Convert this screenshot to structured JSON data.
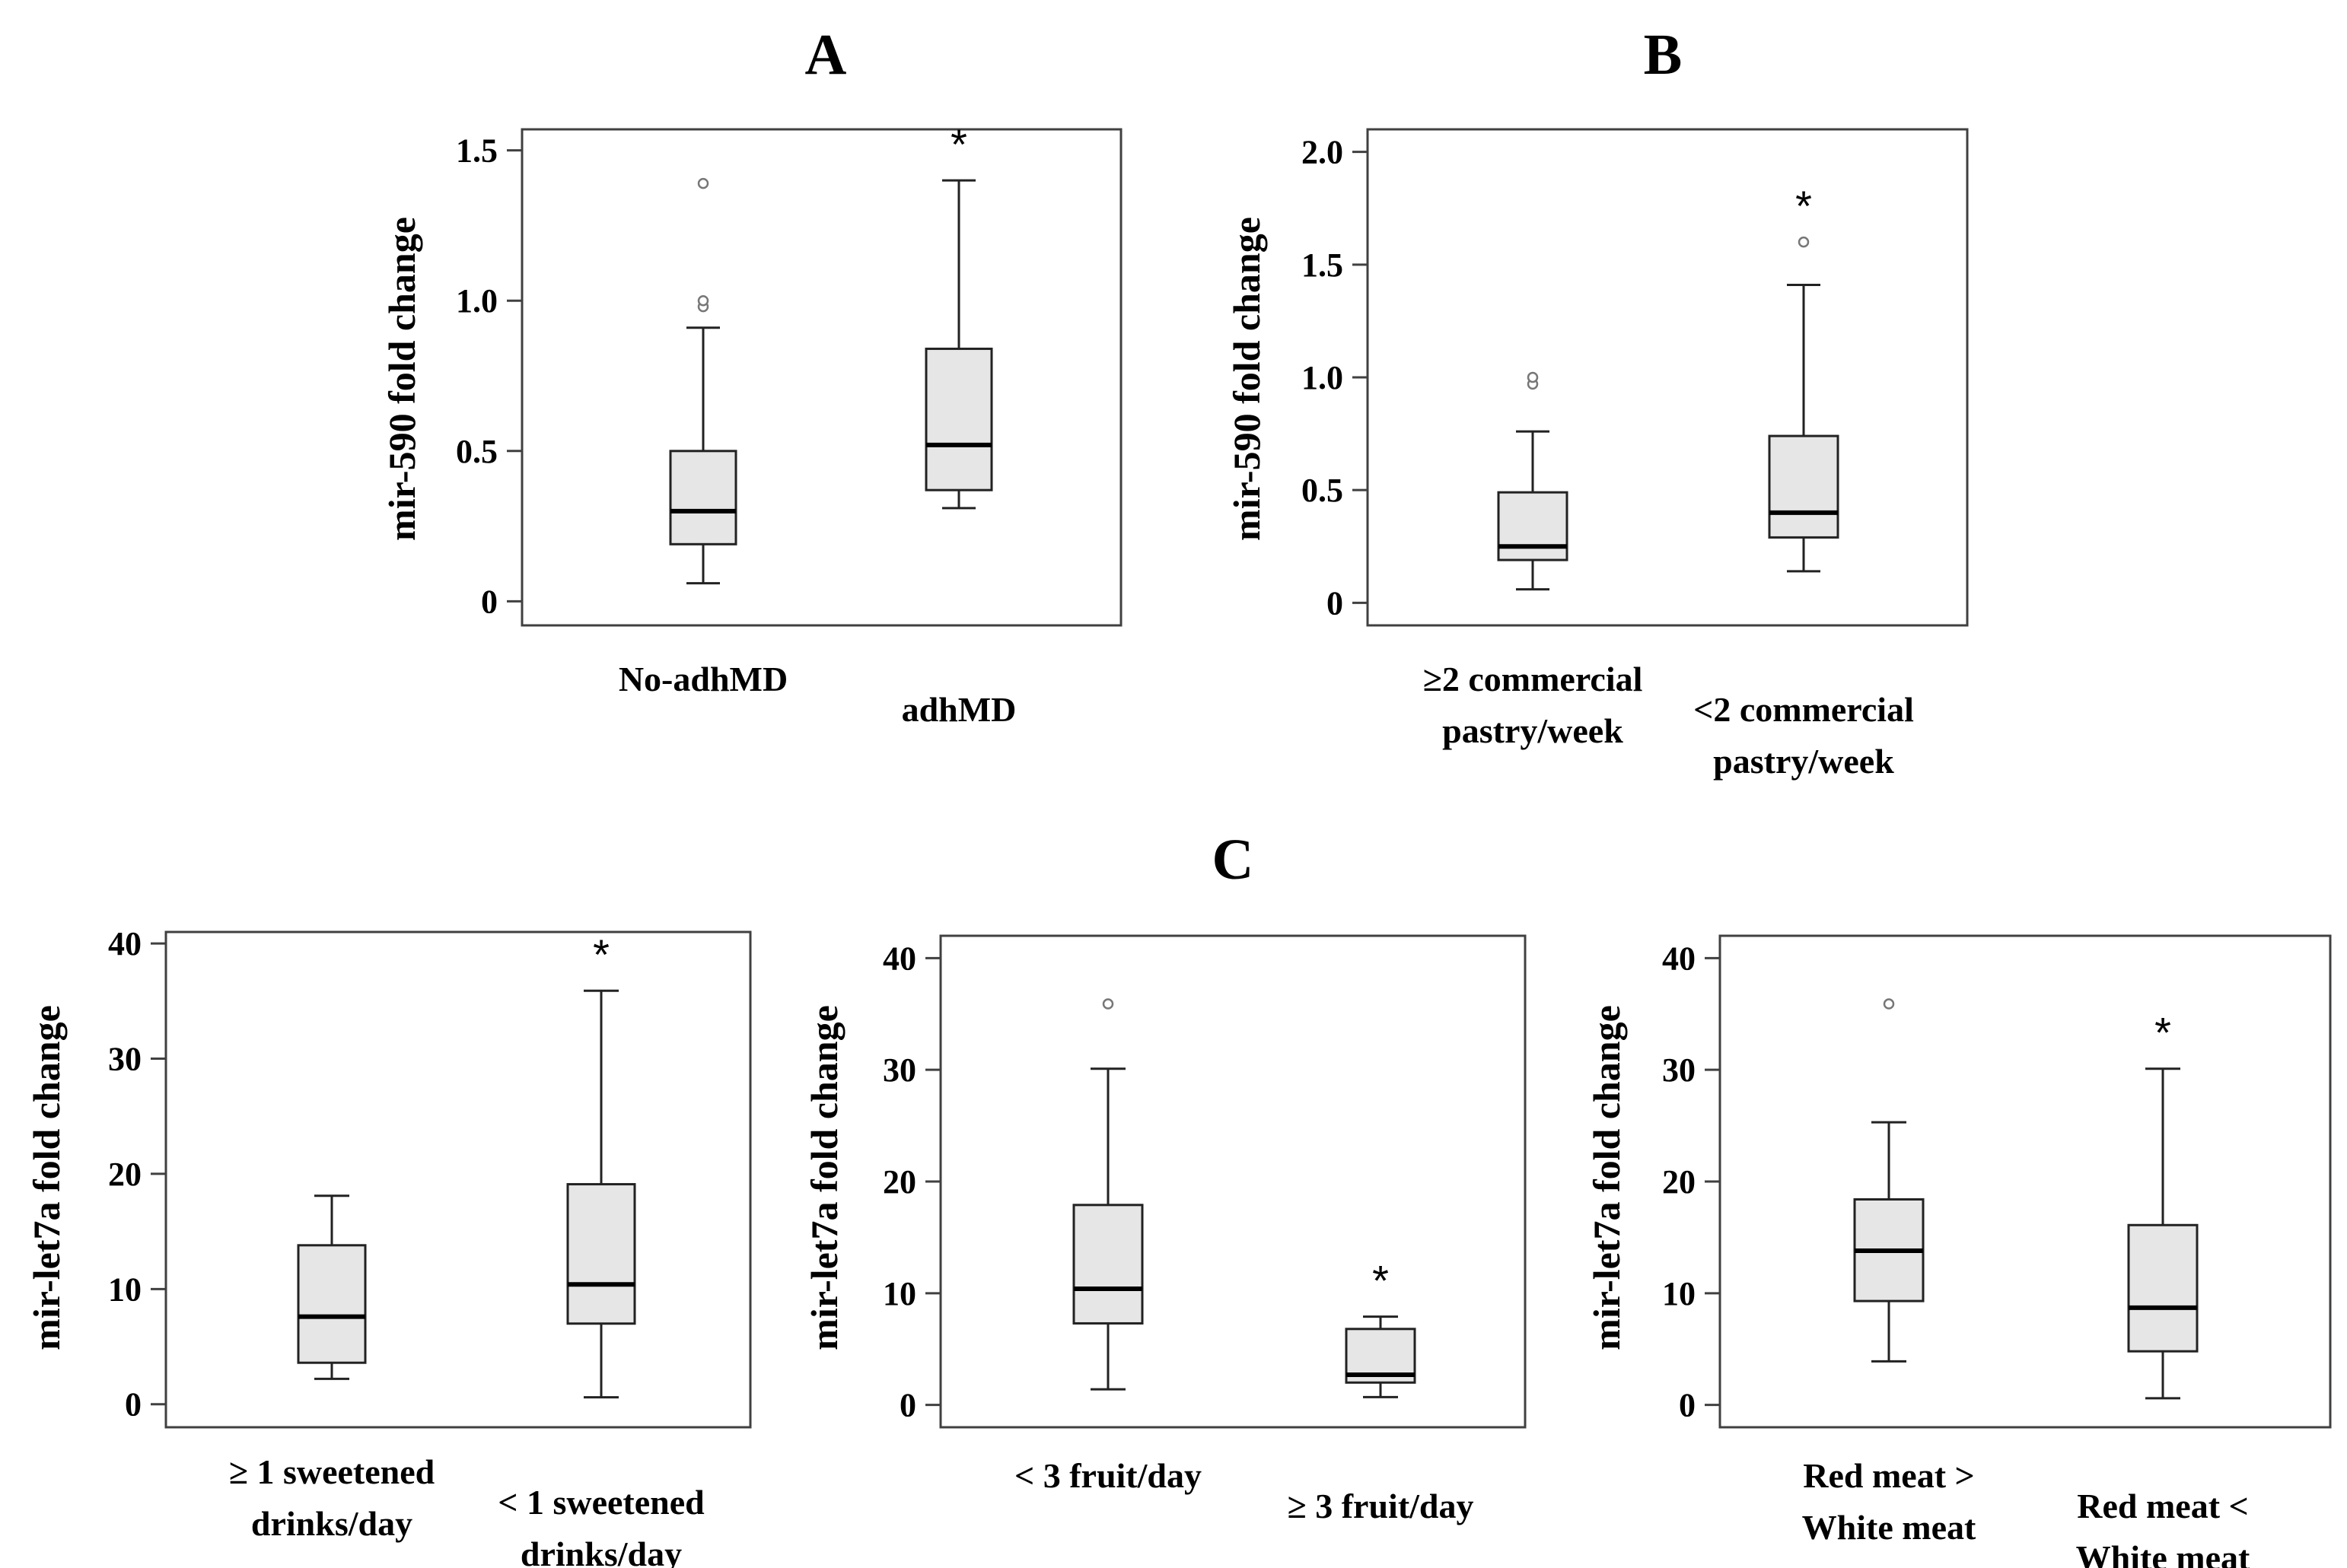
{
  "panel_labels": {
    "a": "A",
    "b": "B",
    "c": "C"
  },
  "chart_data": [
    {
      "id": "A",
      "type": "boxplot",
      "ylabel": "mir-590  fold change",
      "ylim": [
        -0.08,
        1.57
      ],
      "yticks": [
        0,
        0.5,
        1.0,
        1.5
      ],
      "yticklabels": [
        "0",
        "0.5",
        "1.0",
        "1.5"
      ],
      "groups": [
        {
          "label": [
            "No-adhMD"
          ],
          "min": 0.06,
          "q1": 0.19,
          "median": 0.3,
          "q3": 0.5,
          "max": 0.91,
          "outliers": [
            0.98,
            1.0,
            1.39
          ],
          "significant": false
        },
        {
          "label": [
            "adhMD"
          ],
          "min": 0.31,
          "q1": 0.37,
          "median": 0.52,
          "q3": 0.84,
          "max": 1.4,
          "outliers": [],
          "significant": true
        }
      ],
      "significance_marker": "*"
    },
    {
      "id": "B",
      "type": "boxplot",
      "ylabel": "mir-590  fold change",
      "ylim": [
        -0.1,
        2.1
      ],
      "yticks": [
        0,
        0.5,
        1.0,
        1.5,
        2.0
      ],
      "yticklabels": [
        "0",
        "0.5",
        "1.0",
        "1.5",
        "2.0"
      ],
      "groups": [
        {
          "label": [
            "≥2 commercial",
            "pastry/week"
          ],
          "min": 0.06,
          "q1": 0.19,
          "median": 0.25,
          "q3": 0.49,
          "max": 0.76,
          "outliers": [
            0.97,
            1.0
          ],
          "significant": false
        },
        {
          "label": [
            "<2 commercial",
            "pastry/week"
          ],
          "min": 0.14,
          "q1": 0.29,
          "median": 0.4,
          "q3": 0.74,
          "max": 1.41,
          "outliers": [
            1.6
          ],
          "significant": true
        }
      ],
      "significance_marker": "*"
    },
    {
      "id": "C1",
      "type": "boxplot",
      "ylabel": "mir-let7a  fold change",
      "ylim": [
        -2,
        41
      ],
      "yticks": [
        0,
        10,
        20,
        30,
        40
      ],
      "yticklabels": [
        "0",
        "10",
        "20",
        "30",
        "40"
      ],
      "groups": [
        {
          "label": [
            "≥ 1 sweetened",
            "drinks/day"
          ],
          "min": 2.2,
          "q1": 3.6,
          "median": 7.6,
          "q3": 13.8,
          "max": 18.1,
          "outliers": [],
          "significant": false
        },
        {
          "label": [
            "< 1 sweetened",
            "drinks/day"
          ],
          "min": 0.6,
          "q1": 7.0,
          "median": 10.4,
          "q3": 19.1,
          "max": 35.9,
          "outliers": [],
          "significant": true
        }
      ],
      "significance_marker": "*"
    },
    {
      "id": "C2",
      "type": "boxplot",
      "ylabel": "mir-let7a  fold change",
      "ylim": [
        -2,
        42
      ],
      "yticks": [
        0,
        10,
        20,
        30,
        40
      ],
      "yticklabels": [
        "0",
        "10",
        "20",
        "30",
        "40"
      ],
      "groups": [
        {
          "label": [
            "< 3 fruit/day"
          ],
          "min": 1.4,
          "q1": 7.3,
          "median": 10.4,
          "q3": 17.9,
          "max": 30.1,
          "outliers": [
            35.9
          ],
          "significant": false
        },
        {
          "label": [
            "≥ 3 fruit/day"
          ],
          "min": 0.7,
          "q1": 2.0,
          "median": 2.7,
          "q3": 6.8,
          "max": 7.9,
          "outliers": [],
          "significant": true
        }
      ],
      "significance_marker": "*"
    },
    {
      "id": "C3",
      "type": "boxplot",
      "ylabel": "mir-let7a  fold change",
      "ylim": [
        -2,
        42
      ],
      "yticks": [
        0,
        10,
        20,
        30,
        40
      ],
      "yticklabels": [
        "0",
        "10",
        "20",
        "30",
        "40"
      ],
      "groups": [
        {
          "label": [
            "Red meat >",
            "White meat"
          ],
          "min": 3.9,
          "q1": 9.3,
          "median": 13.8,
          "q3": 18.4,
          "max": 25.3,
          "outliers": [
            35.9
          ],
          "significant": false
        },
        {
          "label": [
            "Red meat <",
            "White meat"
          ],
          "min": 0.6,
          "q1": 4.8,
          "median": 8.7,
          "q3": 16.1,
          "max": 30.1,
          "outliers": [],
          "significant": true
        }
      ],
      "significance_marker": "*"
    }
  ]
}
